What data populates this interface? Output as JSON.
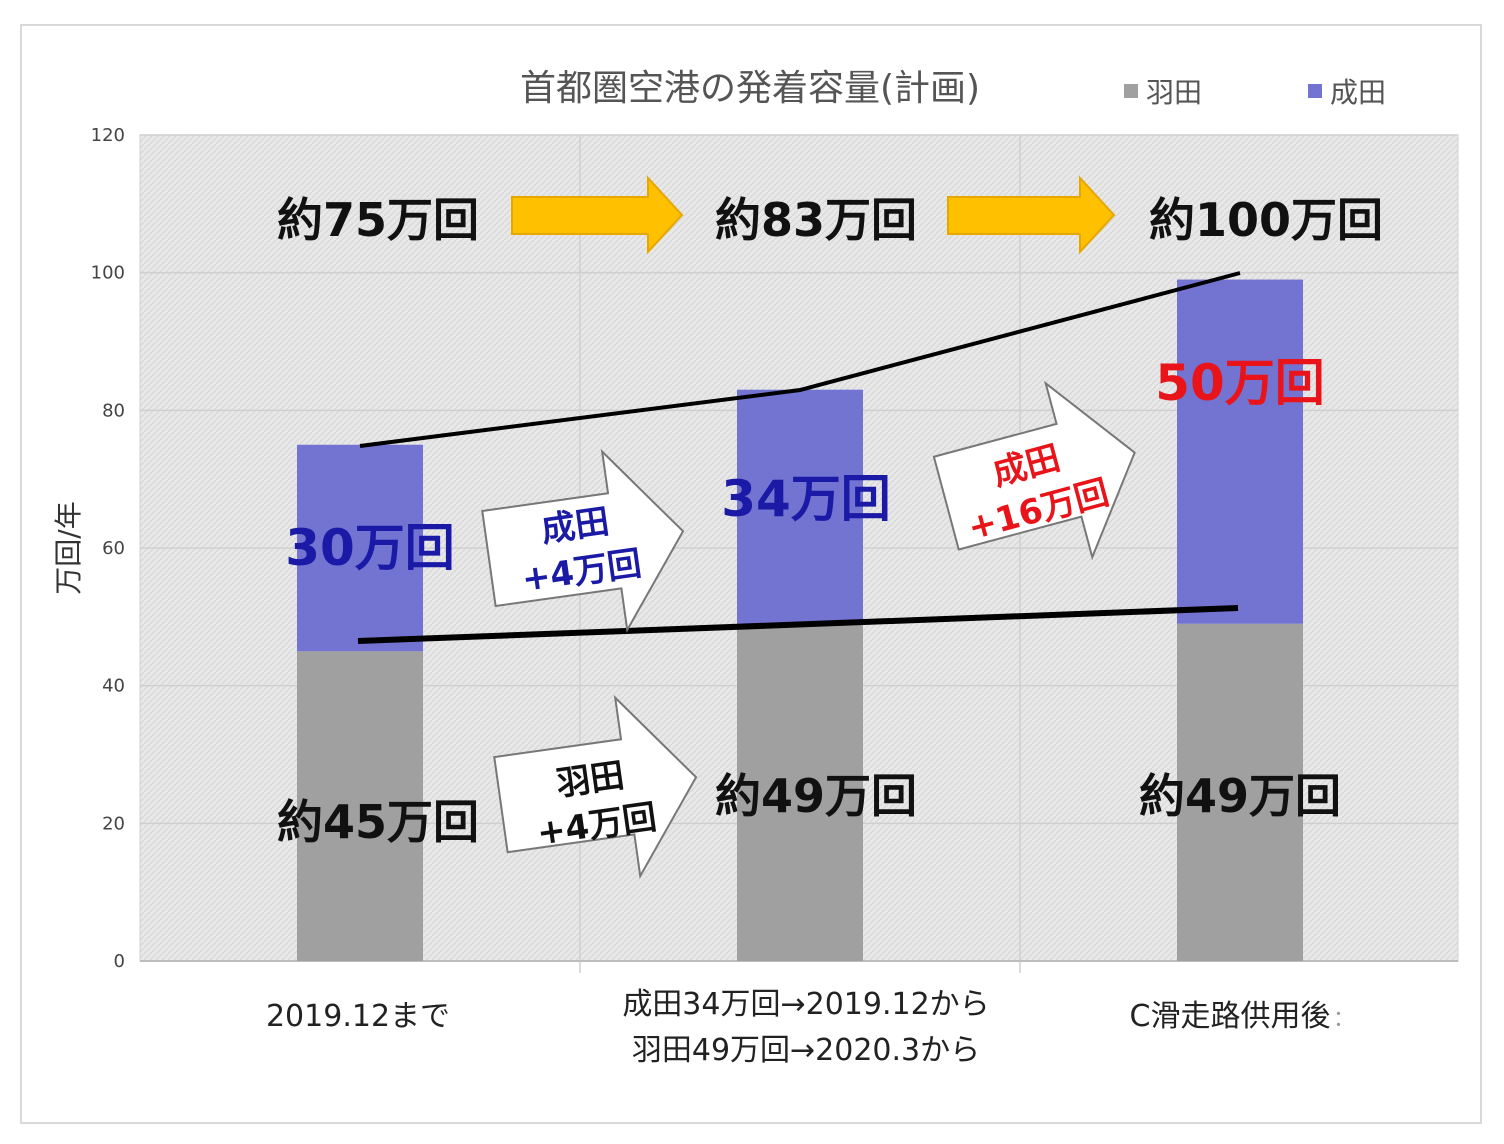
{
  "chart_data": {
    "type": "bar",
    "stacked": true,
    "title": "首都圏空港の発着容量(計画)",
    "ylabel": "万回/年",
    "ylim": [
      0,
      120
    ],
    "yticks": [
      0,
      20,
      40,
      60,
      80,
      100,
      120
    ],
    "grid": true,
    "legend_position": "top-right",
    "categories": [
      [
        "2019.12まで"
      ],
      [
        "成田34万回→2019.12から",
        "羽田49万回→2020.3から"
      ],
      [
        "C滑走路供用後",
        "："
      ]
    ],
    "series": [
      {
        "name": "羽田",
        "values": [
          45,
          49,
          49
        ],
        "color": "#a0a0a0"
      },
      {
        "name": "成田",
        "values": [
          30,
          34,
          50
        ],
        "color": "#7373d1"
      }
    ],
    "totals": [
      "約75万回",
      "約83万回",
      "約100万回"
    ],
    "haneda_labels": [
      "約45万回",
      "約49万回",
      "約49万回"
    ],
    "narita_labels": [
      {
        "text": "30万回",
        "color": "#1a1aa6"
      },
      {
        "text": "34万回",
        "color": "#1a1aa6"
      },
      {
        "text": "50万回",
        "color": "#e8141a"
      }
    ],
    "increment_callouts": [
      {
        "line1": "成田",
        "line2": "+4万回",
        "color": "#1a1aa6"
      },
      {
        "line1": "成田",
        "line2": "+16万回",
        "color": "#e8141a"
      },
      {
        "line1": "羽田",
        "line2": "+4万回",
        "color": "#111111"
      }
    ],
    "accent_arrow_color": "#ffc000"
  }
}
